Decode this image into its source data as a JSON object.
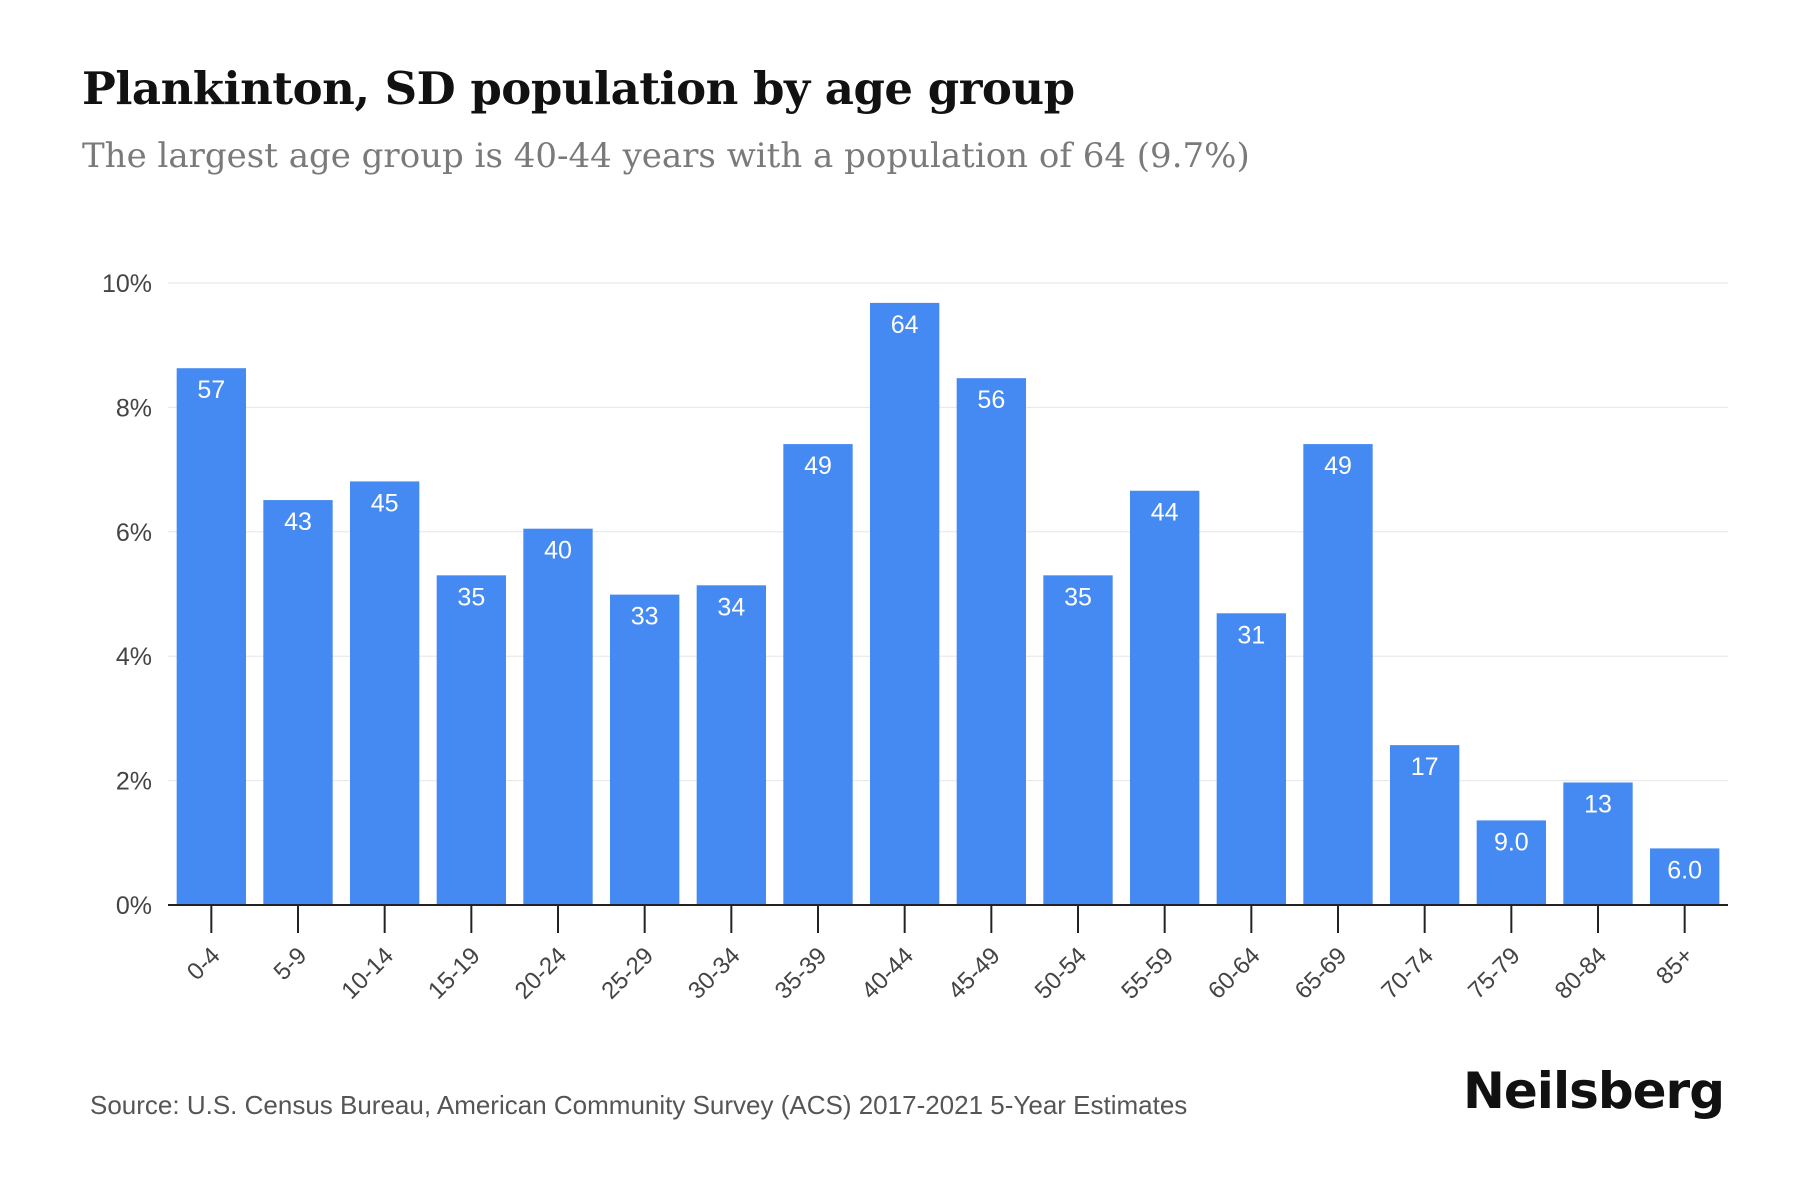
{
  "header": {
    "title": "Plankinton, SD population by age group",
    "subtitle": "The largest age group is 40-44 years with a population of 64 (9.7%)"
  },
  "footer": {
    "source": "Source: U.S. Census Bureau, American Community Survey (ACS) 2017-2021 5-Year Estimates",
    "brand": "Neilsberg"
  },
  "colors": {
    "bar": "#4589f2",
    "bar_label": "#ffffff",
    "grid": "#e6e6e6",
    "axis": "#222222",
    "tick_text": "#444444"
  },
  "chart_data": {
    "type": "bar",
    "categories": [
      "0-4",
      "5-9",
      "10-14",
      "15-19",
      "20-24",
      "25-29",
      "30-34",
      "35-39",
      "40-44",
      "45-49",
      "50-54",
      "55-59",
      "60-64",
      "65-69",
      "70-74",
      "75-79",
      "80-84",
      "85+"
    ],
    "values": [
      8.63,
      6.51,
      6.81,
      5.3,
      6.05,
      4.99,
      5.14,
      7.41,
      9.68,
      8.47,
      5.3,
      6.66,
      4.69,
      7.41,
      2.57,
      1.36,
      1.97,
      0.91
    ],
    "data_labels": [
      "57",
      "43",
      "45",
      "35",
      "40",
      "33",
      "34",
      "49",
      "64",
      "56",
      "35",
      "44",
      "31",
      "49",
      "17",
      "9.0",
      "13",
      "6.0"
    ],
    "y_ticks": [
      0,
      2,
      4,
      6,
      8,
      10
    ],
    "y_tick_labels": [
      "0%",
      "2%",
      "4%",
      "6%",
      "8%",
      "10%"
    ],
    "ylim": [
      0,
      10
    ],
    "grid": true
  }
}
